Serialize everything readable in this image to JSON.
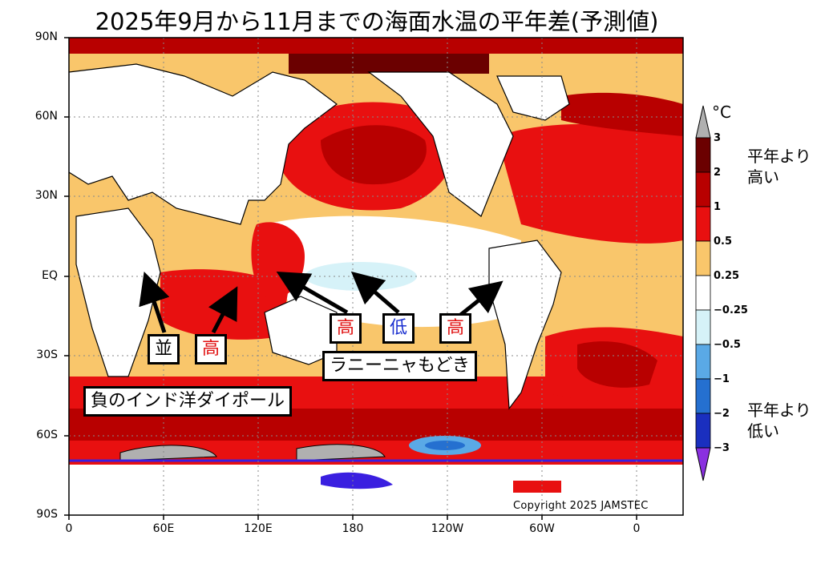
{
  "title": "2025年9月から11月までの海面水温の平年差(予測値)",
  "axes": {
    "lat_labels": [
      "90N",
      "60N",
      "30N",
      "EQ",
      "30S",
      "60S",
      "90S"
    ],
    "lon_labels": [
      "0",
      "60E",
      "120E",
      "180",
      "120W",
      "60W",
      "0"
    ]
  },
  "copyright": "Copyright 2025 JAMSTEC",
  "colorbar": {
    "unit": "°C",
    "ticks": [
      "3",
      "2",
      "1",
      "0.5",
      "0.25",
      "−0.25",
      "−0.5",
      "−1",
      "−2",
      "−3"
    ],
    "colors": [
      "#b0b0b0",
      "#6b0000",
      "#b80000",
      "#e81010",
      "#f9c66b",
      "#ffffff",
      "#d6f2f8",
      "#5aa9e6",
      "#2570d0",
      "#1a2fbf",
      "#3a1fe0",
      "#8a30e0"
    ],
    "high_note": [
      "平年より",
      "高い"
    ],
    "low_note": [
      "平年より",
      "低い"
    ]
  },
  "annotations": {
    "labels": [
      {
        "text": "並",
        "color": "#000000"
      },
      {
        "text": "高",
        "color": "#e01010"
      },
      {
        "text": "高",
        "color": "#e01010"
      },
      {
        "text": "低",
        "color": "#1a2fd0"
      },
      {
        "text": "高",
        "color": "#e01010"
      }
    ],
    "phenomena": [
      "負のインド洋ダイポール",
      "ラニーニャもどき"
    ]
  }
}
